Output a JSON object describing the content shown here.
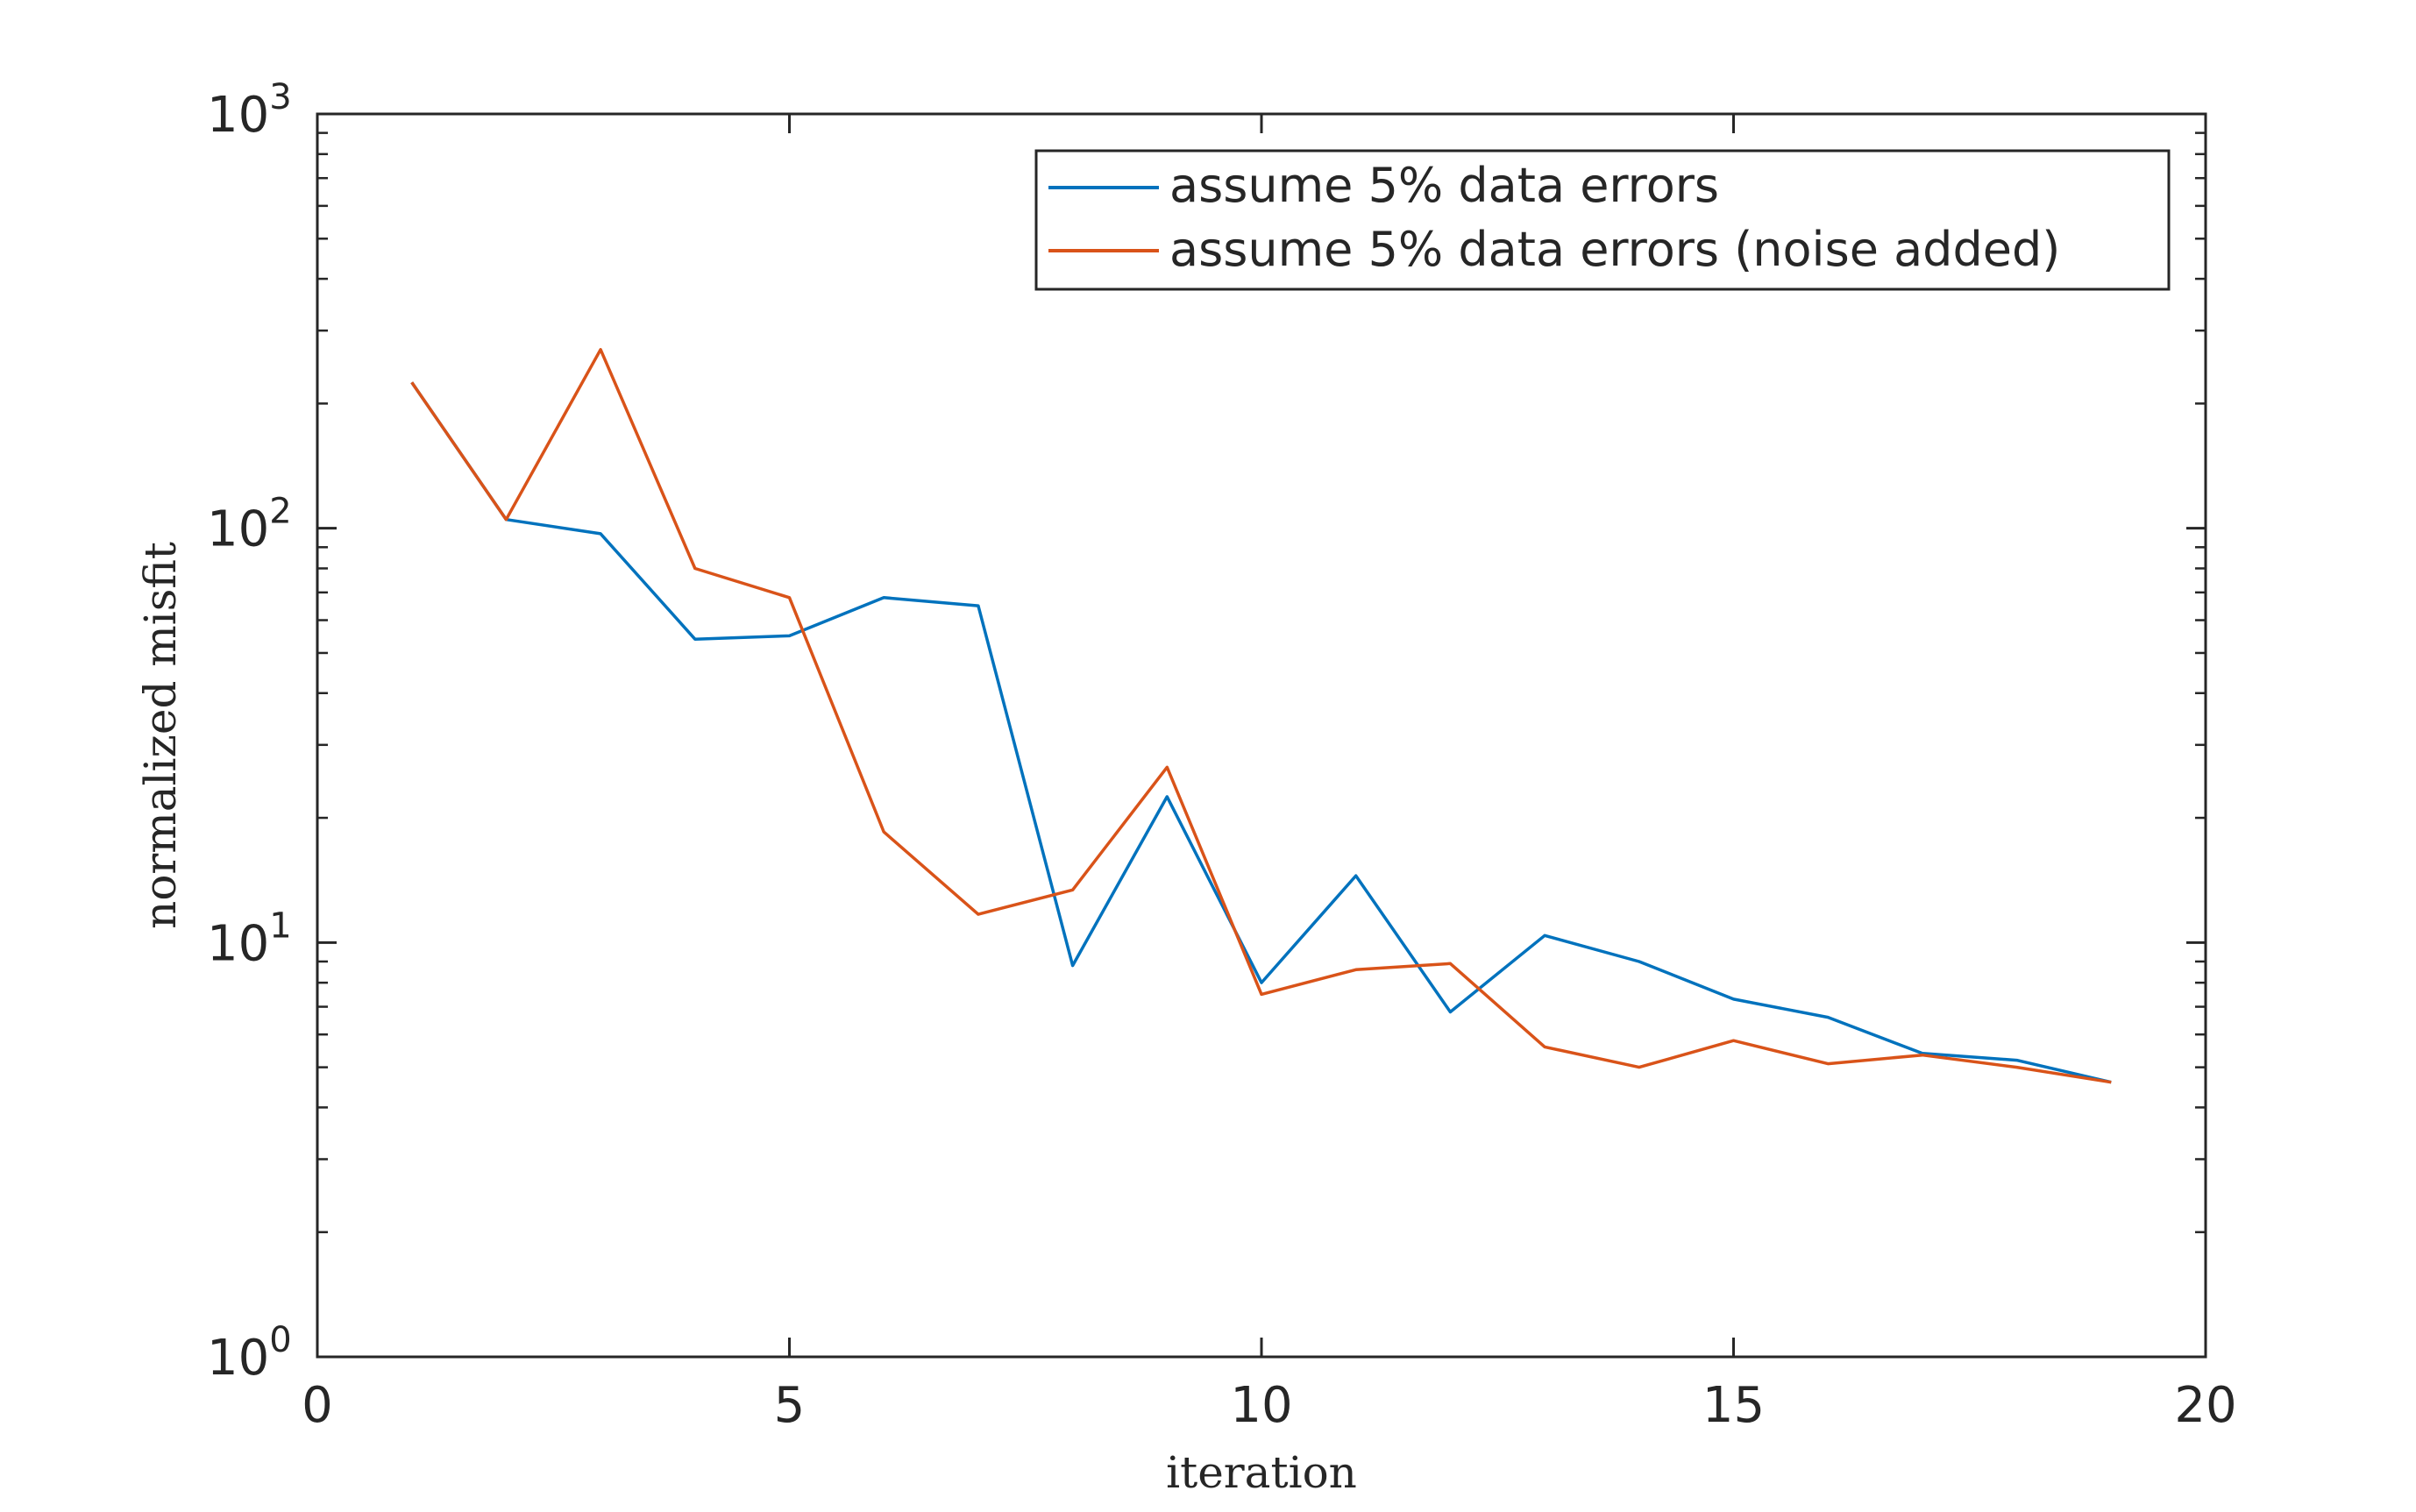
{
  "chart_data": {
    "type": "line",
    "title": "",
    "xlabel": "iteration",
    "ylabel": "normalized misfit",
    "xlim": [
      0,
      20
    ],
    "ylim": [
      1,
      1000
    ],
    "yscale": "log",
    "grid": false,
    "legend_position": "top-right",
    "x_ticks": [
      0,
      5,
      10,
      15,
      20
    ],
    "x_tick_labels": [
      "0",
      "5",
      "10",
      "15",
      "20"
    ],
    "y_ticks": [
      1,
      10,
      100,
      1000
    ],
    "y_tick_bases": [
      "10",
      "10",
      "10",
      "10"
    ],
    "y_tick_exponents": [
      "0",
      "1",
      "2",
      "3"
    ],
    "series": [
      {
        "name": "assume 5% data errors",
        "color": "#0072BD",
        "x": [
          1,
          2,
          3,
          4,
          5,
          6,
          7,
          8,
          9,
          10,
          11,
          12,
          13,
          14,
          15,
          16,
          17,
          18,
          19
        ],
        "values": [
          225,
          105,
          97,
          54,
          55,
          68,
          65,
          8.8,
          22.5,
          8.0,
          14.5,
          6.8,
          10.4,
          9.0,
          7.3,
          6.6,
          5.4,
          5.2,
          4.6
        ]
      },
      {
        "name": "assume 5% data errors (noise added)",
        "color": "#D95319",
        "x": [
          1,
          2,
          3,
          4,
          5,
          6,
          7,
          8,
          9,
          10,
          11,
          12,
          13,
          14,
          15,
          16,
          17,
          18,
          19
        ],
        "values": [
          225,
          105,
          270,
          80,
          68,
          18.5,
          11.7,
          13.4,
          26.5,
          7.5,
          8.6,
          8.9,
          5.6,
          5.0,
          5.8,
          5.1,
          5.35,
          5.0,
          4.6
        ]
      }
    ]
  }
}
